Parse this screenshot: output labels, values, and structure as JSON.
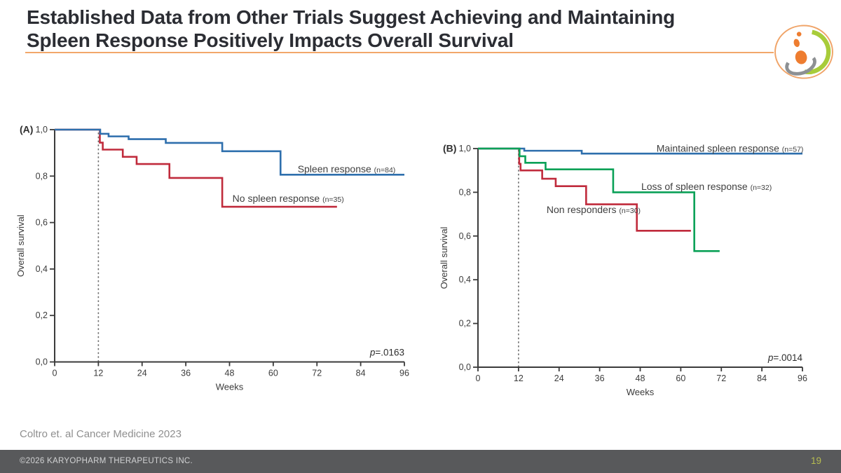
{
  "header": {
    "title_lines": [
      "Established Data from Other Trials Suggest Achieving and Maintaining",
      "Spleen Response Positively Impacts Overall Survival"
    ],
    "accent_color": "#f2a76a",
    "logo": {
      "ring_color": "#f0a468",
      "leaf_color": "#a8cc3a",
      "swoosh_color": "#8d9093",
      "dot_color": "#ee7d30"
    }
  },
  "citation": "Coltro et. al Cancer Medicine 2023",
  "footer": {
    "copyright": "©2026 KARYOPHARM THERAPEUTICS INC.",
    "page_number": "19"
  },
  "chart_data": [
    {
      "id": "A",
      "type": "line",
      "subtype": "kaplan-meier-step",
      "panel_label": "(A)",
      "xlabel": "Weeks",
      "ylabel": "Overall survival",
      "xlim": [
        0,
        96
      ],
      "ylim": [
        0,
        1
      ],
      "x_ticks": [
        0,
        12,
        24,
        36,
        48,
        60,
        72,
        84,
        96
      ],
      "y_tick_values": [
        0,
        0.2,
        0.4,
        0.6,
        0.8,
        1.0
      ],
      "y_tick_labels": [
        "0,0",
        "0,2",
        "0,4",
        "0,6",
        "0,8",
        "1,0"
      ],
      "grid": false,
      "landmark_week": 12,
      "p_value": {
        "italic": "p",
        "text": "=.0163"
      },
      "series": [
        {
          "name": "Spleen response",
          "n_label": "(n=84)",
          "color": "#2e6fad",
          "z": 2,
          "steps": [
            [
              0,
              1.0
            ],
            [
              12.5,
              0.982
            ],
            [
              14.8,
              0.971
            ],
            [
              20.3,
              0.959
            ],
            [
              30.5,
              0.943
            ],
            [
              46,
              0.907
            ],
            [
              62,
              0.806
            ]
          ],
          "end_week": 96,
          "label": {
            "week": 66.7,
            "value": 0.816,
            "anchor": "start"
          }
        },
        {
          "name": "No spleen response",
          "n_label": "(n=35)",
          "color": "#c02b3c",
          "z": 1,
          "steps": [
            [
              0,
              1.0
            ],
            [
              12.4,
              0.944
            ],
            [
              13.2,
              0.914
            ],
            [
              18.7,
              0.883
            ],
            [
              22.5,
              0.852
            ],
            [
              31.5,
              0.792
            ],
            [
              46,
              0.668
            ]
          ],
          "end_week": 77.5,
          "label": {
            "week": 48.8,
            "value": 0.689,
            "anchor": "start"
          }
        }
      ]
    },
    {
      "id": "B",
      "type": "line",
      "subtype": "kaplan-meier-step",
      "panel_label": "(B)",
      "xlabel": "Weeks",
      "ylabel": "Overall survival",
      "xlim": [
        0,
        96
      ],
      "ylim": [
        0,
        1
      ],
      "x_ticks": [
        0,
        12,
        24,
        36,
        48,
        60,
        72,
        84,
        96
      ],
      "y_tick_values": [
        0,
        0.2,
        0.4,
        0.6,
        0.8,
        1.0
      ],
      "y_tick_labels": [
        "0,0",
        "0,2",
        "0,4",
        "0,6",
        "0,8",
        "1,0"
      ],
      "grid": false,
      "landmark_week": 12,
      "p_value": {
        "italic": "p",
        "text": "=.0014"
      },
      "series": [
        {
          "name": "Maintained spleen response",
          "n_label": "(n=57)",
          "color": "#2e6fad",
          "z": 2,
          "steps": [
            [
              0,
              1.0
            ],
            [
              13.7,
              0.99
            ],
            [
              30.7,
              0.977
            ]
          ],
          "end_week": 96,
          "label": {
            "week": 96.3,
            "value": 0.985,
            "anchor": "end"
          }
        },
        {
          "name": "Loss of spleen response",
          "n_label": "(n=32)",
          "color": "#0aa157",
          "z": 3,
          "steps": [
            [
              0,
              1.0
            ],
            [
              12.3,
              0.965
            ],
            [
              14,
              0.935
            ],
            [
              20,
              0.905
            ],
            [
              40,
              0.8
            ],
            [
              64,
              0.531
            ]
          ],
          "end_week": 71.5,
          "label": {
            "week": 48.3,
            "value": 0.811,
            "anchor": "start"
          }
        },
        {
          "name": "Non responders",
          "n_label": "(n=30)",
          "color": "#c02b3c",
          "z": 1,
          "steps": [
            [
              0,
              1.0
            ],
            [
              12.2,
              0.93
            ],
            [
              12.6,
              0.9
            ],
            [
              19,
              0.862
            ],
            [
              23,
              0.828
            ],
            [
              32,
              0.745
            ],
            [
              47,
              0.624
            ]
          ],
          "end_week": 63,
          "label": {
            "week": 20.3,
            "value": 0.705,
            "anchor": "start"
          }
        }
      ]
    }
  ]
}
